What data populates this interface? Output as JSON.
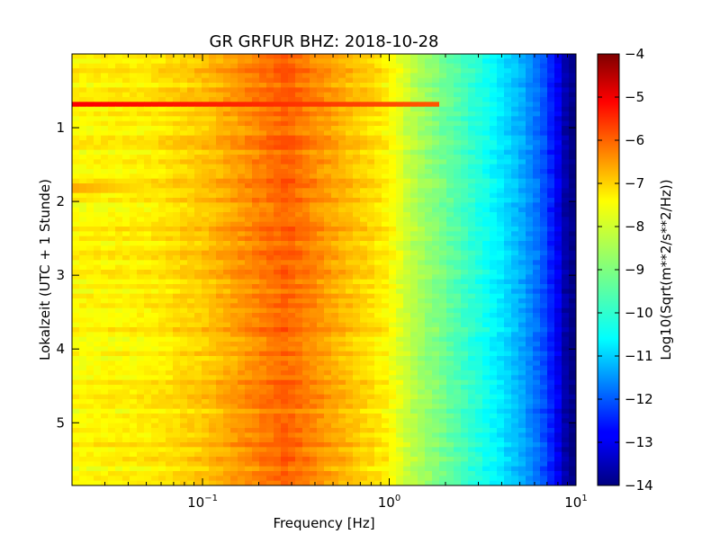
{
  "chart_data": {
    "type": "heatmap",
    "title": "GR GRFUR BHZ: 2018-10-28",
    "xlabel": "Frequency [Hz]",
    "ylabel": "Lokalzeit (UTC + 1 Stunde)",
    "xscale": "log",
    "xlim": [
      0.02,
      10
    ],
    "ylim": [
      0,
      5.85
    ],
    "y_inverted": true,
    "x_ticks": [
      {
        "value": 0.1,
        "base": "10",
        "exp": "−1"
      },
      {
        "value": 1,
        "base": "10",
        "exp": "0"
      },
      {
        "value": 10,
        "base": "10",
        "exp": "1"
      }
    ],
    "y_ticks": [
      {
        "value": 1,
        "label": "1"
      },
      {
        "value": 2,
        "label": "2"
      },
      {
        "value": 3,
        "label": "3"
      },
      {
        "value": 4,
        "label": "4"
      },
      {
        "value": 5,
        "label": "5"
      }
    ],
    "colormap": "jet",
    "colorbar": {
      "label": "Log10(Sqrt(m**2/s**2/Hz))",
      "range": [
        -14,
        -4
      ],
      "ticks": [
        {
          "value": -4,
          "label": "−4"
        },
        {
          "value": -5,
          "label": "−5"
        },
        {
          "value": -6,
          "label": "−6"
        },
        {
          "value": -7,
          "label": "−7"
        },
        {
          "value": -8,
          "label": "−8"
        },
        {
          "value": -9,
          "label": "−9"
        },
        {
          "value": -10,
          "label": "−10"
        },
        {
          "value": -11,
          "label": "−11"
        },
        {
          "value": -12,
          "label": "−12"
        },
        {
          "value": -13,
          "label": "−13"
        },
        {
          "value": -14,
          "label": "−14"
        }
      ]
    },
    "spectrum_profile": {
      "frequency_hz": [
        0.02,
        0.05,
        0.1,
        0.15,
        0.2,
        0.28,
        0.4,
        0.6,
        0.8,
        1.0,
        1.3,
        1.8,
        2.5,
        3.5,
        5,
        6.5,
        8,
        9,
        10
      ],
      "value": [
        -7.7,
        -7.6,
        -7.2,
        -6.8,
        -6.5,
        -6.2,
        -6.6,
        -7.1,
        -7.4,
        -7.7,
        -8.4,
        -9.0,
        -9.6,
        -10.2,
        -11.0,
        -11.8,
        -12.9,
        -13.8,
        -14.0
      ]
    },
    "events": [
      {
        "time": 0.68,
        "fmax_hz": 1.8,
        "level": -5.2
      },
      {
        "time": 1.82,
        "fmax_hz": 0.08,
        "level": -6.9
      }
    ],
    "colors": {
      "low": "#00007f",
      "mid": "#7fff7f",
      "high": "#7f0000"
    }
  }
}
